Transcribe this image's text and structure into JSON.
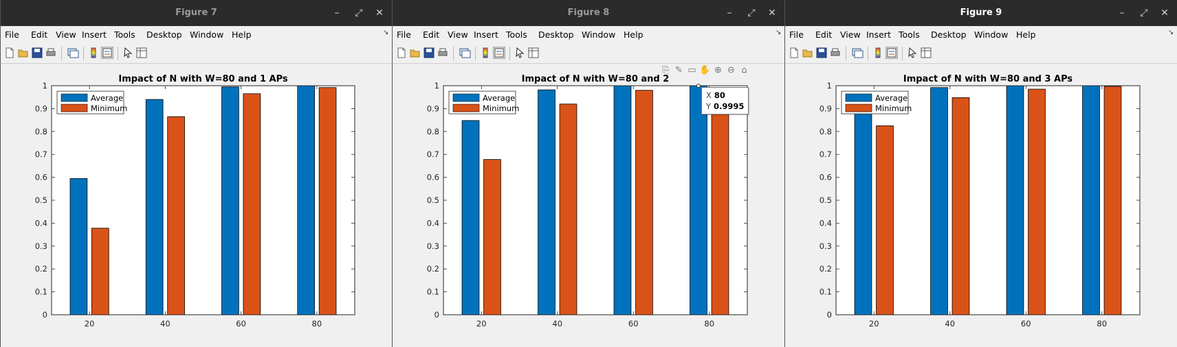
{
  "windows": [
    {
      "title": "Figure 7",
      "active": false,
      "menus": [
        "File",
        "Edit",
        "View",
        "Insert",
        "Tools",
        "Desktop",
        "Window",
        "Help"
      ],
      "chart_data": {
        "type": "bar",
        "title": "Impact of N with W=80 and 1 APs",
        "categories": [
          "20",
          "40",
          "60",
          "80"
        ],
        "series": [
          {
            "name": "Average",
            "values": [
              0.595,
              0.94,
              0.995,
              1.0
            ]
          },
          {
            "name": "Minimum",
            "values": [
              0.378,
              0.865,
              0.965,
              0.992
            ]
          }
        ],
        "ylim": [
          0,
          1
        ],
        "yticks": [
          "0",
          "0.1",
          "0.2",
          "0.3",
          "0.4",
          "0.5",
          "0.6",
          "0.7",
          "0.8",
          "0.9",
          "1"
        ],
        "legend_position": "top-left",
        "colors": {
          "Average": "#0072BD",
          "Minimum": "#D95319"
        }
      }
    },
    {
      "title": "Figure 8",
      "active": false,
      "menus": [
        "File",
        "Edit",
        "View",
        "Insert",
        "Tools",
        "Desktop",
        "Window",
        "Help"
      ],
      "chart_data": {
        "type": "bar",
        "title": "Impact of N with W=80 and 2",
        "categories": [
          "20",
          "40",
          "60",
          "80"
        ],
        "series": [
          {
            "name": "Average",
            "values": [
              0.848,
              0.982,
              1.0,
              0.9995
            ]
          },
          {
            "name": "Minimum",
            "values": [
              0.678,
              0.92,
              0.98,
              0.98
            ]
          }
        ],
        "ylim": [
          0,
          1
        ],
        "yticks": [
          "0",
          "0.1",
          "0.2",
          "0.3",
          "0.4",
          "0.5",
          "0.6",
          "0.7",
          "0.8",
          "0.9",
          "1"
        ],
        "legend_position": "top-left",
        "colors": {
          "Average": "#0072BD",
          "Minimum": "#D95319"
        }
      },
      "datatip": {
        "x_label": "X",
        "x_value": "80",
        "y_label": "Y",
        "y_value": "0.9995"
      }
    },
    {
      "title": "Figure 9",
      "active": true,
      "menus": [
        "File",
        "Edit",
        "View",
        "Insert",
        "Tools",
        "Desktop",
        "Window",
        "Help"
      ],
      "chart_data": {
        "type": "bar",
        "title": "Impact of N with W=80 and 3 APs",
        "categories": [
          "20",
          "40",
          "60",
          "80"
        ],
        "series": [
          {
            "name": "Average",
            "values": [
              0.9,
              0.992,
              1.0,
              1.0
            ]
          },
          {
            "name": "Minimum",
            "values": [
              0.825,
              0.948,
              0.985,
              0.997
            ]
          }
        ],
        "ylim": [
          0,
          1
        ],
        "yticks": [
          "0",
          "0.1",
          "0.2",
          "0.3",
          "0.4",
          "0.5",
          "0.6",
          "0.7",
          "0.8",
          "0.9",
          "1"
        ],
        "legend_position": "top-left",
        "colors": {
          "Average": "#0072BD",
          "Minimum": "#D95319"
        }
      }
    }
  ],
  "controls": {
    "minimize": "–",
    "maximize": "⤢",
    "close": "✕",
    "dock": "↘"
  }
}
